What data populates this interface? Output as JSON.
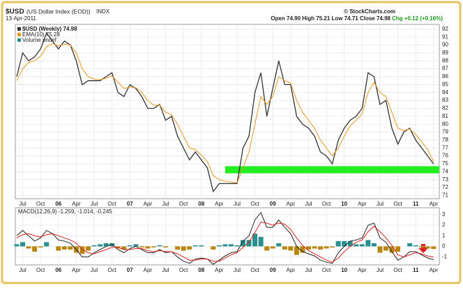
{
  "header": {
    "symbol": "$USD",
    "name": "(US Dollar Index (EOD))",
    "exchange": "INDX",
    "date": "13-Apr-2011",
    "quote": "Open 74.90 High 75.21 Low 74.71 Close 74.98",
    "change": "Chg +0.12 (+0.16%)",
    "credit": "© StockCharts.com"
  },
  "chart_data": [
    {
      "type": "line",
      "legend": [
        "$USD (Weekly) 74.98",
        "EMA(10) 75.28",
        "Volume undef"
      ],
      "categories": [
        null,
        "Jul",
        null,
        null,
        "Oct",
        null,
        null,
        "06",
        null,
        null,
        "Apr",
        null,
        null,
        "Jul",
        null,
        null,
        "Oct",
        null,
        null,
        "07",
        null,
        null,
        "Apr",
        null,
        null,
        "Jul",
        null,
        null,
        "Oct",
        null,
        null,
        "08",
        null,
        null,
        "Apr",
        null,
        null,
        "Jul",
        null,
        null,
        "Oct",
        null,
        null,
        "09",
        null,
        null,
        "Apr",
        null,
        null,
        "Jul",
        null,
        null,
        "Oct",
        null,
        null,
        "10",
        null,
        null,
        "Apr",
        null,
        null,
        "Jul",
        null,
        null,
        "Oct",
        null,
        null,
        "11",
        null,
        null,
        "Apr"
      ],
      "series": [
        {
          "name": "$USD (Weekly)",
          "color": "#333333",
          "values": [
            86,
            89,
            88,
            88.5,
            89.5,
            91.5,
            90.5,
            89.5,
            90.5,
            90,
            88,
            85,
            85.5,
            85.5,
            85.5,
            86,
            86.5,
            84,
            83.5,
            85,
            84.5,
            83.5,
            82,
            82,
            82.5,
            80.5,
            81,
            78.5,
            77,
            75.5,
            76.5,
            75.5,
            74.5,
            71.5,
            72.5,
            72.5,
            72.5,
            72.5,
            77,
            78.5,
            84,
            86.5,
            81,
            84.5,
            88,
            85,
            85,
            81,
            80,
            79.5,
            78.5,
            76.5,
            76,
            75,
            78,
            79.5,
            80.5,
            81,
            82,
            86.5,
            86,
            82.5,
            83,
            79.5,
            77.5,
            79,
            79.5,
            78,
            77,
            76,
            74.98
          ]
        },
        {
          "name": "EMA(10)",
          "color": "#e8961e",
          "values": [
            85.5,
            87,
            87.8,
            88,
            88.6,
            89.8,
            90.2,
            89.9,
            90.1,
            90,
            89,
            87,
            86,
            85.7,
            85.6,
            85.8,
            86.1,
            85.3,
            84.5,
            84.7,
            84.6,
            84,
            83,
            82.4,
            82.4,
            81.5,
            81.2,
            80,
            78.5,
            77,
            76.8,
            76.1,
            75.3,
            73.5,
            73,
            72.8,
            72.7,
            72.6,
            74.5,
            76.5,
            80,
            83.5,
            82.5,
            83.5,
            86,
            85.5,
            85.2,
            83,
            81.5,
            80.5,
            79.5,
            78,
            77,
            76,
            77,
            78.5,
            79.8,
            80.5,
            81.3,
            84,
            85.3,
            84,
            83.5,
            81.5,
            79.5,
            79.2,
            79.4,
            78.7,
            77.8,
            76.8,
            75.28
          ]
        }
      ],
      "band": {
        "range": [
          73.8,
          74.7
        ],
        "start": 35,
        "color": "#22ee22"
      },
      "ylim": [
        70.6,
        92.6
      ],
      "yticks": [
        71,
        72,
        73,
        74,
        75,
        76,
        77,
        78,
        79,
        80,
        81,
        82,
        83,
        84,
        85,
        86,
        87,
        88,
        89,
        90,
        91,
        92
      ],
      "grid": true
    },
    {
      "type": "macd",
      "legend": "MACD(12,26,9) -1.259, -1.014, -0.245",
      "categories": [
        null,
        "Jul",
        null,
        null,
        "Oct",
        null,
        null,
        "06",
        null,
        null,
        "Apr",
        null,
        null,
        "Jul",
        null,
        null,
        "Oct",
        null,
        null,
        "07",
        null,
        null,
        "Apr",
        null,
        null,
        "Jul",
        null,
        null,
        "Oct",
        null,
        null,
        "08",
        null,
        null,
        "Apr",
        null,
        null,
        "Jul",
        null,
        null,
        "Oct",
        null,
        null,
        "09",
        null,
        null,
        "Apr",
        null,
        null,
        "Jul",
        null,
        null,
        "Oct",
        null,
        null,
        "10",
        null,
        null,
        "Apr",
        null,
        null,
        "Jul",
        null,
        null,
        "Oct",
        null,
        null,
        "11",
        null,
        null,
        "Apr"
      ],
      "series": [
        {
          "name": "MACD",
          "color": "#222222",
          "values": [
            1,
            1.5,
            1,
            0.5,
            0.8,
            1.5,
            1.2,
            0.6,
            0.5,
            0.3,
            -0.3,
            -1,
            -1,
            -0.6,
            -0.3,
            0,
            0.2,
            -0.3,
            -0.6,
            -0.2,
            0,
            -0.3,
            -0.6,
            -0.6,
            -0.3,
            -0.6,
            -0.5,
            -1,
            -1.4,
            -1.6,
            -1.2,
            -1.1,
            -1.2,
            -1.7,
            -1.3,
            -0.9,
            -0.6,
            -0.5,
            0.5,
            1,
            2.5,
            3.2,
            1.8,
            1.8,
            2.5,
            1.8,
            1.2,
            0,
            -0.5,
            -0.7,
            -0.9,
            -1.3,
            -1.5,
            -1.6,
            -0.6,
            0,
            0.5,
            0.6,
            0.8,
            2,
            2.2,
            0.8,
            0.4,
            -0.5,
            -1.3,
            -1,
            -0.5,
            -0.5,
            -0.8,
            -1.1,
            -1.259
          ]
        },
        {
          "name": "Signal",
          "color": "#e02020",
          "values": [
            0.8,
            1.1,
            1.2,
            1,
            0.9,
            1.1,
            1.2,
            1,
            0.8,
            0.6,
            0.3,
            -0.3,
            -0.6,
            -0.7,
            -0.5,
            -0.3,
            -0.1,
            -0.1,
            -0.3,
            -0.3,
            -0.2,
            -0.2,
            -0.4,
            -0.5,
            -0.4,
            -0.5,
            -0.5,
            -0.7,
            -1,
            -1.3,
            -1.3,
            -1.2,
            -1.2,
            -1.4,
            -1.4,
            -1.1,
            -0.8,
            -0.6,
            -0.1,
            0.4,
            1.3,
            2.3,
            2.2,
            2,
            2.2,
            2.1,
            1.6,
            0.8,
            0.1,
            -0.4,
            -0.7,
            -1,
            -1.3,
            -1.5,
            -1.1,
            -0.5,
            0,
            0.4,
            0.6,
            1.4,
            1.9,
            1.4,
            0.8,
            0.1,
            -0.8,
            -1,
            -0.8,
            -0.6,
            -0.7,
            -0.9,
            -1.014
          ]
        },
        {
          "name": "Histogram",
          "color": "#2a8f8f",
          "negative_color": "#b8860b",
          "values": [
            0.2,
            0.4,
            -0.2,
            -0.5,
            -0.1,
            0.4,
            0,
            -0.4,
            -0.3,
            -0.3,
            -0.6,
            -0.7,
            -0.4,
            0.1,
            0.2,
            0.3,
            0.3,
            -0.2,
            -0.3,
            0.1,
            0.2,
            -0.1,
            -0.2,
            -0.1,
            0.1,
            -0.1,
            0,
            -0.3,
            -0.4,
            -0.3,
            0.1,
            0.1,
            0,
            -0.3,
            0.1,
            0.2,
            0.2,
            0.1,
            0.6,
            0.6,
            1.2,
            0.9,
            -0.4,
            -0.2,
            0.3,
            -0.3,
            -0.4,
            -0.8,
            -0.6,
            -0.3,
            -0.2,
            -0.3,
            -0.2,
            -0.1,
            0.5,
            0.5,
            0.5,
            0.2,
            0.2,
            0.6,
            0.3,
            -0.6,
            -0.4,
            -0.6,
            -0.5,
            0,
            0.3,
            0.1,
            -0.1,
            -0.2,
            -0.245
          ]
        }
      ],
      "ylim": [
        -1.75,
        3.65
      ],
      "yticks": [
        3,
        2,
        1,
        0,
        -1
      ],
      "grid": true
    }
  ]
}
